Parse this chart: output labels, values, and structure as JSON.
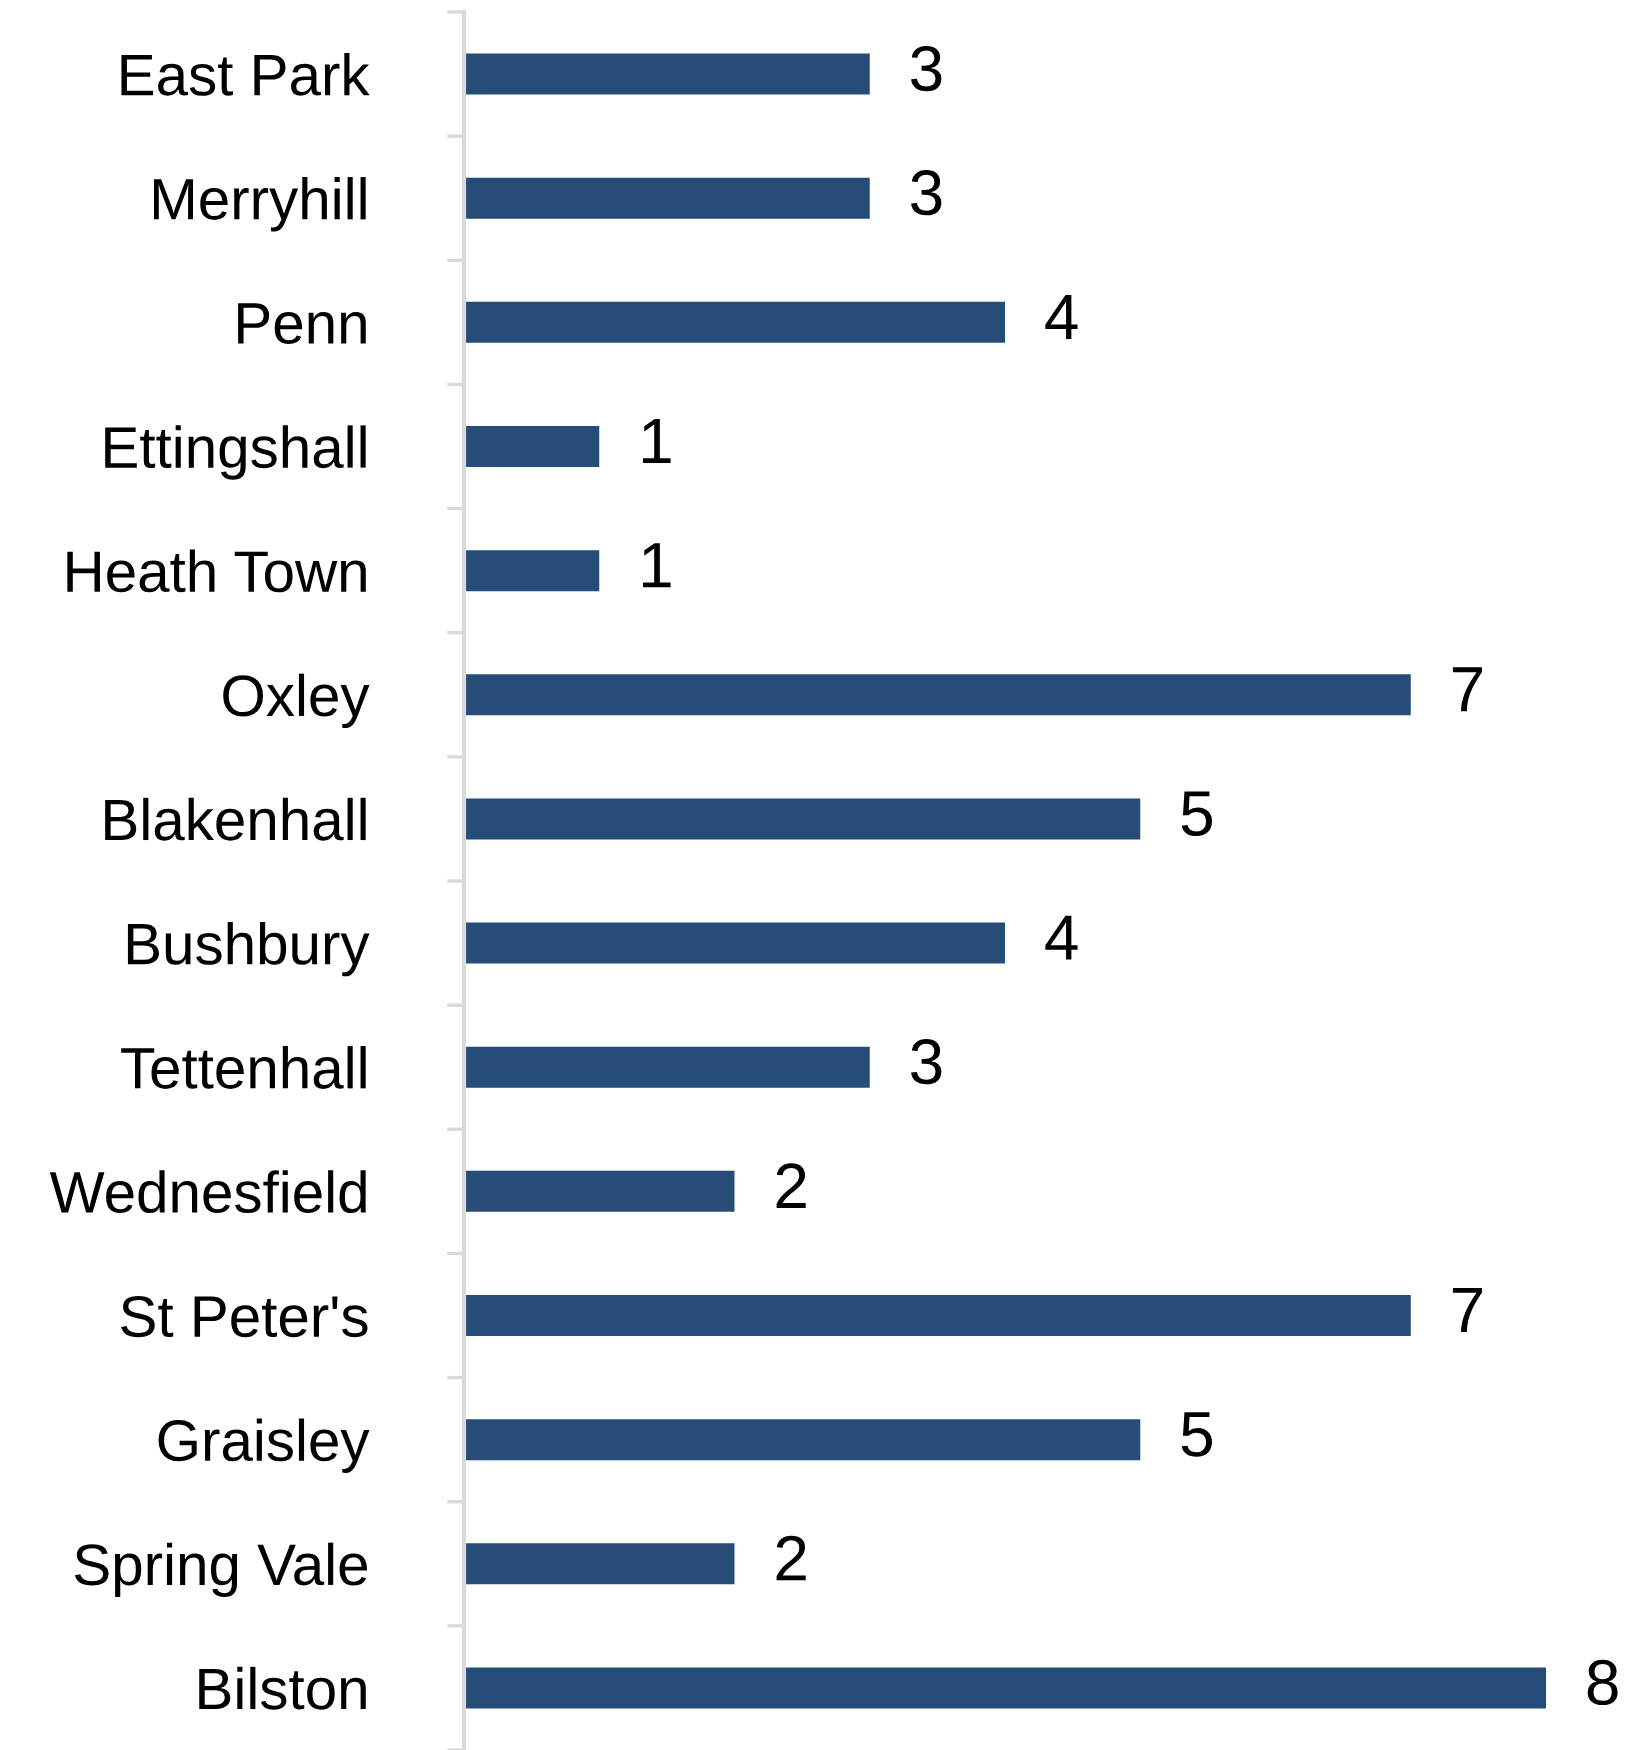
{
  "chart_data": {
    "type": "bar",
    "orientation": "horizontal",
    "categories": [
      "East Park",
      "Merryhill",
      "Penn",
      "Ettingshall",
      "Heath Town",
      "Oxley",
      "Blakenhall",
      "Bushbury",
      "Tettenhall",
      "Wednesfield",
      "St Peter's",
      "Graisley",
      "Spring Vale",
      "Bilston"
    ],
    "values": [
      3,
      3,
      4,
      1,
      1,
      7,
      5,
      4,
      3,
      2,
      7,
      5,
      2,
      8
    ],
    "color": "#254d78",
    "data_labels": true,
    "grid": false,
    "legend": false
  }
}
